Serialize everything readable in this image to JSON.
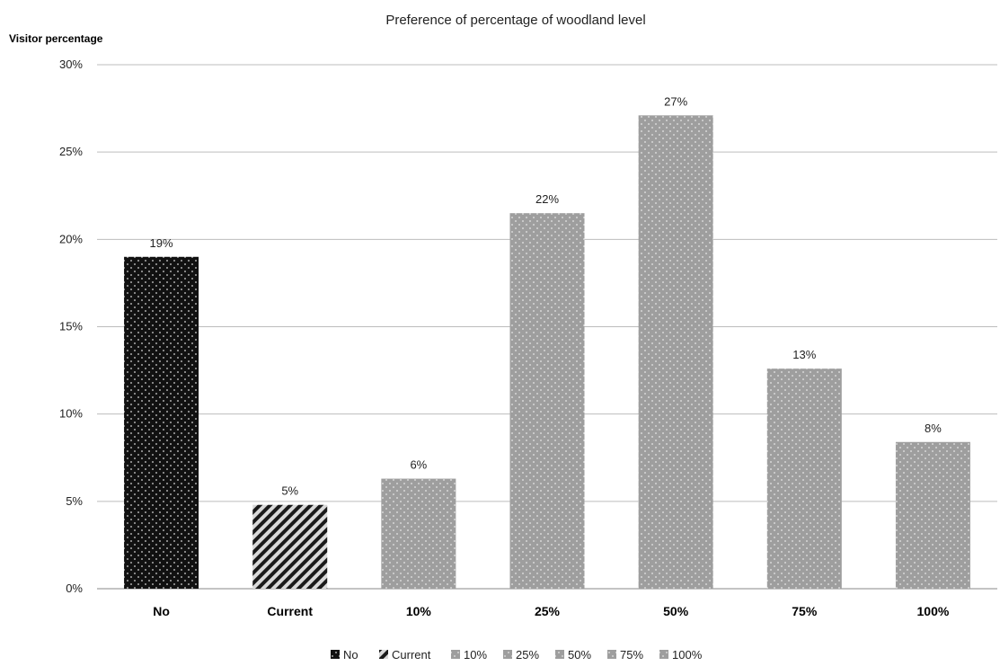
{
  "chart_data": {
    "type": "bar",
    "title": "Preference of percentage of woodland level",
    "ylabel": "Visitor percentage",
    "xlabel": "",
    "ylim": [
      0,
      30
    ],
    "yticks": [
      0,
      5,
      10,
      15,
      20,
      25,
      30
    ],
    "ytick_labels": [
      "0%",
      "5%",
      "10%",
      "15%",
      "20%",
      "25%",
      "30%"
    ],
    "categories": [
      "No",
      "Current",
      "10%",
      "25%",
      "50%",
      "75%",
      "100%"
    ],
    "values": [
      19,
      4.8,
      6.3,
      21.5,
      27.1,
      12.6,
      8.4
    ],
    "data_labels": [
      "19%",
      "5%",
      "6%",
      "22%",
      "27%",
      "13%",
      "8%"
    ],
    "bar_styles": [
      "black-dots",
      "diagonal-stripes",
      "gray-dots",
      "gray-dots",
      "gray-dots",
      "gray-dots",
      "gray-dots"
    ],
    "colors": {
      "no": "#111111",
      "current": "#444444",
      "other": "#9e9e9e",
      "grid": "#bdbdbd"
    },
    "grid": true,
    "legend": {
      "position": "bottom",
      "entries": [
        "No",
        "Current",
        "10%",
        "25%",
        "50%",
        "75%",
        "100%"
      ]
    }
  }
}
